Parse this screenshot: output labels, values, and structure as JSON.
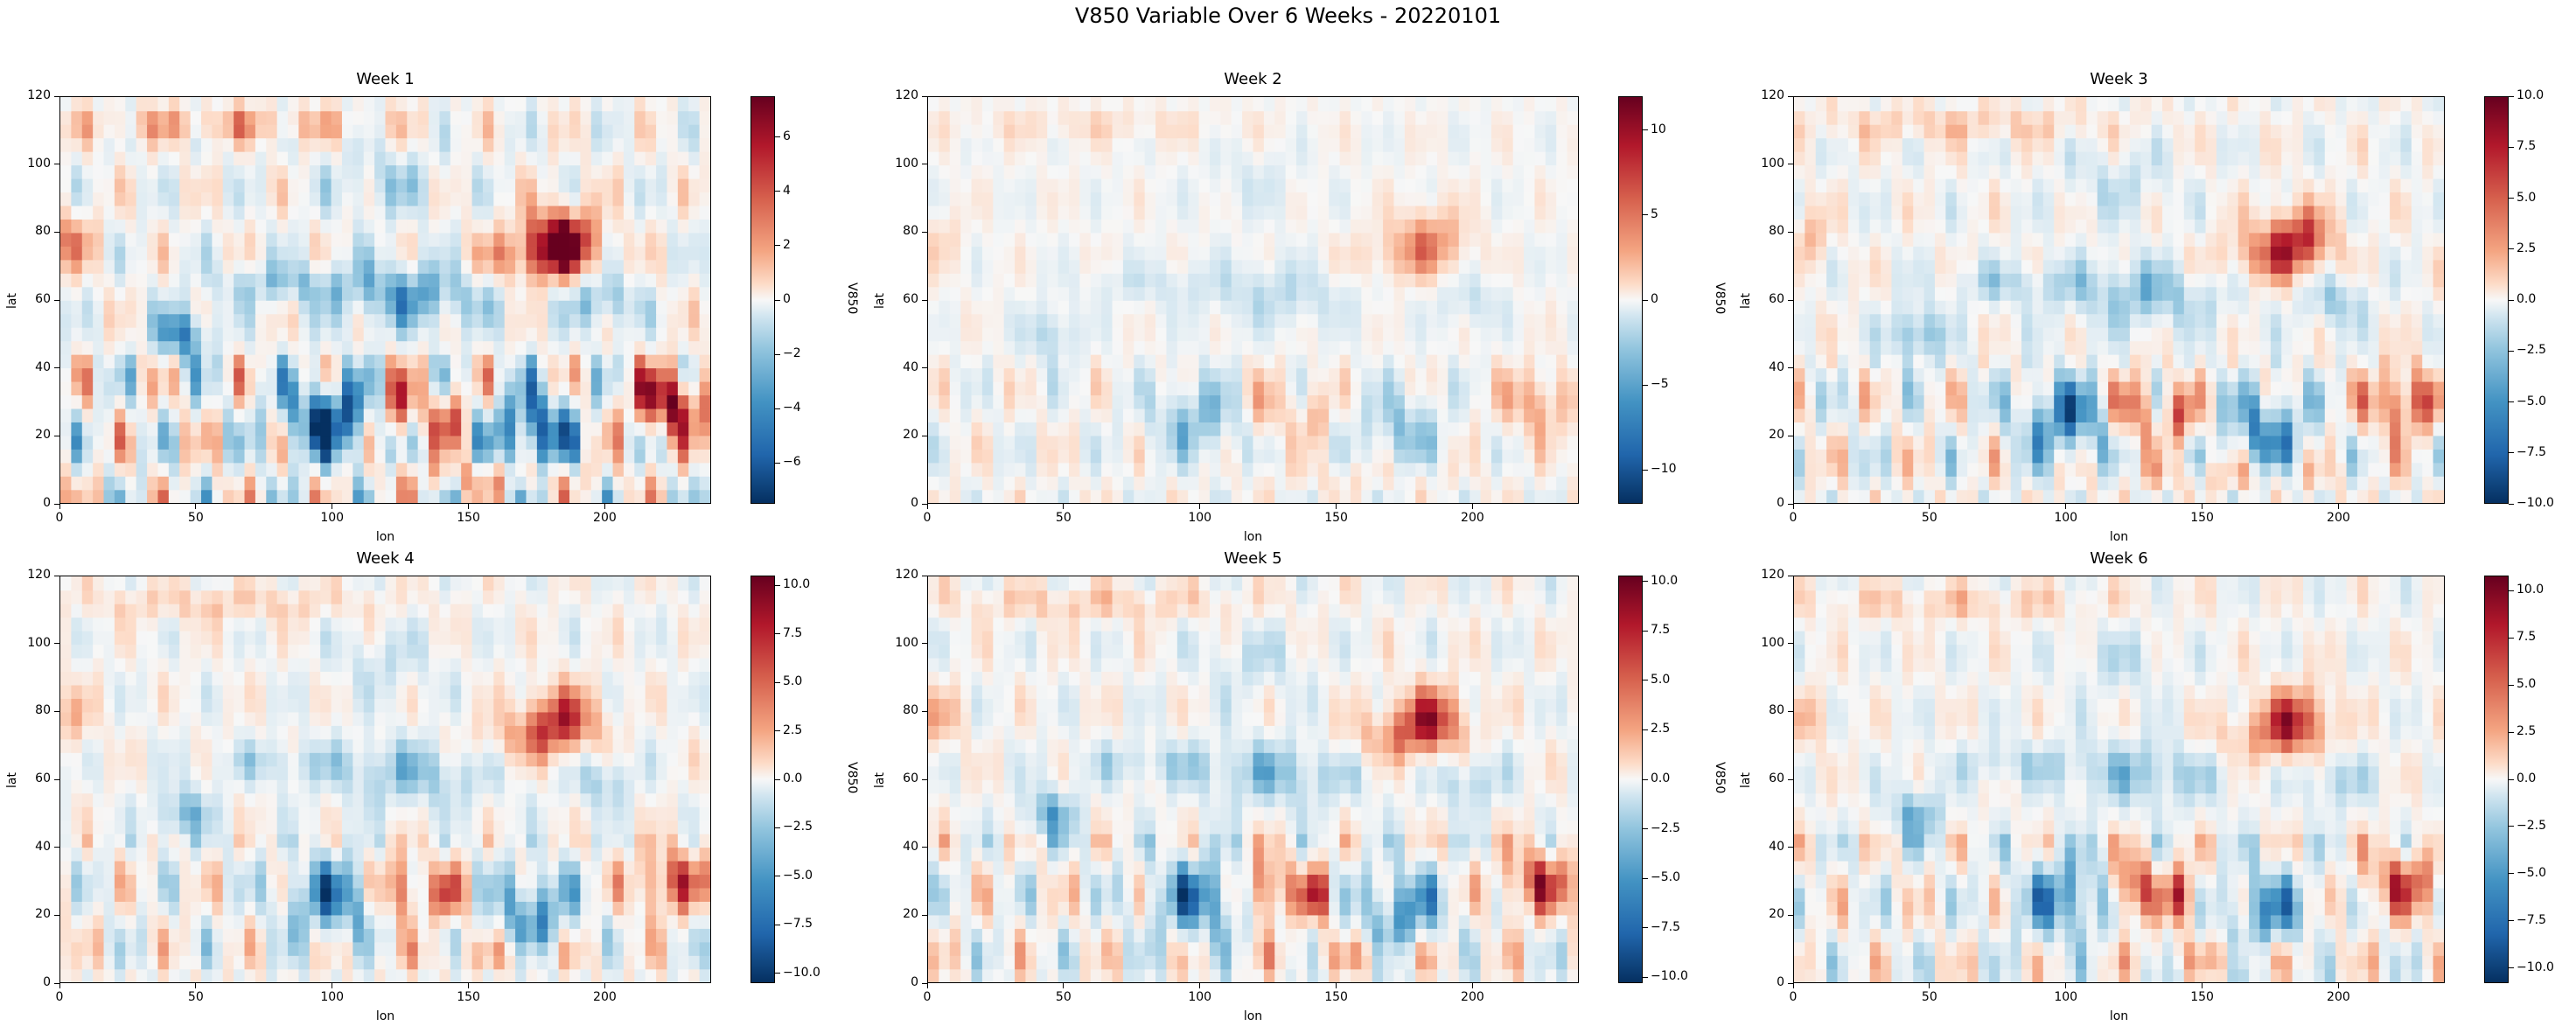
{
  "suptitle": "V850 Variable Over 6 Weeks - 20220101",
  "chart_data": {
    "type": "heatmap",
    "variable": "V850",
    "colormap": "RdBu_r",
    "xlabel": "lon",
    "ylabel": "lat",
    "xlim": [
      0,
      239
    ],
    "ylim": [
      0,
      120
    ],
    "x_ticks": [
      0,
      50,
      100,
      150,
      200
    ],
    "y_ticks": [
      0,
      20,
      40,
      60,
      80,
      100,
      120
    ],
    "colorbar_label": "V850",
    "panels": [
      {
        "title": "Week 1",
        "clim": [
          -7.5,
          7.5
        ],
        "cbar_ticks": [
          "−6",
          "−4",
          "−2",
          "0",
          "2",
          "4",
          "6"
        ],
        "cbar_values": [
          -6,
          -4,
          -2,
          0,
          2,
          4,
          6
        ],
        "amplitude": 1.0
      },
      {
        "title": "Week 2",
        "clim": [
          -12,
          12
        ],
        "cbar_ticks": [
          "−10",
          "−5",
          "0",
          "5",
          "10"
        ],
        "cbar_values": [
          -10,
          -5,
          0,
          5,
          10
        ],
        "amplitude": 0.75
      },
      {
        "title": "Week 3",
        "clim": [
          -10,
          10
        ],
        "cbar_ticks": [
          "−10.0",
          "−7.5",
          "−5.0",
          "−2.5",
          "0.0",
          "2.5",
          "5.0",
          "7.5",
          "10.0"
        ],
        "cbar_values": [
          -10,
          -7.5,
          -5,
          -2.5,
          0,
          2.5,
          5,
          7.5,
          10
        ],
        "amplitude": 1.0
      },
      {
        "title": "Week 4",
        "clim": [
          -10.5,
          10.5
        ],
        "cbar_ticks": [
          "−10.0",
          "−7.5",
          "−5.0",
          "−2.5",
          "0.0",
          "2.5",
          "5.0",
          "7.5",
          "10.0"
        ],
        "cbar_values": [
          -10,
          -7.5,
          -5,
          -2.5,
          0,
          2.5,
          5,
          7.5,
          10
        ],
        "amplitude": 1.0
      },
      {
        "title": "Week 5",
        "clim": [
          -10.3,
          10.3
        ],
        "cbar_ticks": [
          "−10.0",
          "−7.5",
          "−5.0",
          "−2.5",
          "0.0",
          "2.5",
          "5.0",
          "7.5",
          "10.0"
        ],
        "cbar_values": [
          -10,
          -7.5,
          -5,
          -2.5,
          0,
          2.5,
          5,
          7.5,
          10
        ],
        "amplitude": 1.0
      },
      {
        "title": "Week 6",
        "clim": [
          -10.8,
          10.8
        ],
        "cbar_ticks": [
          "−10.0",
          "−7.5",
          "−5.0",
          "−2.5",
          "0.0",
          "2.5",
          "5.0",
          "7.5",
          "10.0"
        ],
        "cbar_values": [
          -10,
          -7.5,
          -5,
          -2.5,
          0,
          2.5,
          5,
          7.5,
          10
        ],
        "amplitude": 1.0
      }
    ]
  }
}
